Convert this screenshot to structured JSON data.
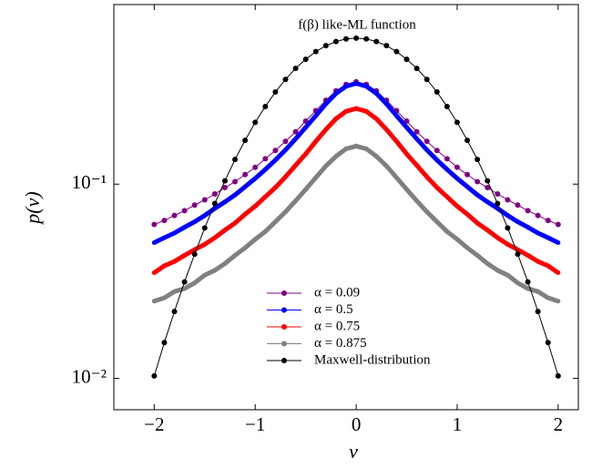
{
  "chart_data": {
    "type": "line",
    "title": "f(β) like-ML function",
    "xlabel": "v",
    "ylabel": "p(v)",
    "log_y": true,
    "legend": "bottom",
    "x": [
      -2.0,
      -1.9,
      -1.8,
      -1.7,
      -1.6,
      -1.5,
      -1.4,
      -1.3,
      -1.2,
      -1.1,
      -1.0,
      -0.9,
      -0.8,
      -0.7,
      -0.6,
      -0.5,
      -0.4,
      -0.3,
      -0.2,
      -0.1,
      0.0,
      0.1,
      0.2,
      0.3,
      0.4,
      0.5,
      0.6,
      0.7,
      0.8,
      0.9,
      1.0,
      1.1,
      1.2,
      1.3,
      1.4,
      1.5,
      1.6,
      1.7,
      1.8,
      1.9,
      2.0
    ],
    "series": [
      {
        "name": "α = 0.09",
        "color": "#800080",
        "values": [
          0.062,
          0.065,
          0.069,
          0.073,
          0.078,
          0.083,
          0.089,
          0.096,
          0.103,
          0.112,
          0.122,
          0.135,
          0.149,
          0.166,
          0.186,
          0.211,
          0.239,
          0.27,
          0.302,
          0.326,
          0.336,
          0.326,
          0.302,
          0.27,
          0.239,
          0.211,
          0.186,
          0.166,
          0.149,
          0.135,
          0.122,
          0.112,
          0.103,
          0.096,
          0.089,
          0.083,
          0.078,
          0.073,
          0.069,
          0.065,
          0.062
        ]
      },
      {
        "name": "α = 0.5",
        "color": "#0000ff",
        "values": [
          0.05,
          0.053,
          0.056,
          0.06,
          0.064,
          0.069,
          0.075,
          0.081,
          0.088,
          0.097,
          0.107,
          0.119,
          0.133,
          0.15,
          0.171,
          0.196,
          0.225,
          0.259,
          0.293,
          0.319,
          0.33,
          0.319,
          0.293,
          0.259,
          0.225,
          0.196,
          0.171,
          0.15,
          0.133,
          0.119,
          0.107,
          0.097,
          0.088,
          0.081,
          0.075,
          0.069,
          0.064,
          0.06,
          0.056,
          0.053,
          0.05
        ]
      },
      {
        "name": "α = 0.75",
        "color": "#ff0000",
        "values": [
          0.035,
          0.038,
          0.04,
          0.043,
          0.046,
          0.049,
          0.053,
          0.058,
          0.063,
          0.07,
          0.077,
          0.086,
          0.096,
          0.109,
          0.125,
          0.143,
          0.166,
          0.191,
          0.217,
          0.237,
          0.245,
          0.237,
          0.217,
          0.191,
          0.166,
          0.143,
          0.125,
          0.109,
          0.096,
          0.086,
          0.077,
          0.07,
          0.063,
          0.058,
          0.053,
          0.049,
          0.046,
          0.043,
          0.04,
          0.038,
          0.035
        ]
      },
      {
        "name": "α = 0.875",
        "color": "#808080",
        "values": [
          0.025,
          0.026,
          0.028,
          0.029,
          0.031,
          0.034,
          0.036,
          0.039,
          0.043,
          0.047,
          0.052,
          0.057,
          0.064,
          0.072,
          0.082,
          0.094,
          0.108,
          0.124,
          0.139,
          0.152,
          0.157,
          0.152,
          0.139,
          0.124,
          0.108,
          0.094,
          0.082,
          0.072,
          0.064,
          0.057,
          0.052,
          0.047,
          0.043,
          0.039,
          0.036,
          0.034,
          0.031,
          0.029,
          0.028,
          0.026,
          0.025
        ]
      },
      {
        "name": "Maxwell-distribution",
        "color": "#000000",
        "values": [
          0.0103,
          0.0153,
          0.0221,
          0.0314,
          0.0436,
          0.0595,
          0.0795,
          0.104,
          0.134,
          0.168,
          0.208,
          0.251,
          0.298,
          0.346,
          0.394,
          0.439,
          0.481,
          0.516,
          0.542,
          0.559,
          0.564,
          0.559,
          0.542,
          0.516,
          0.481,
          0.439,
          0.394,
          0.346,
          0.298,
          0.251,
          0.208,
          0.168,
          0.134,
          0.104,
          0.0795,
          0.0595,
          0.0436,
          0.0314,
          0.0221,
          0.0153,
          0.0103
        ]
      }
    ],
    "xlim": [
      -2.4,
      2.2
    ],
    "ylim": [
      0.0069,
      0.84
    ],
    "xticks": [
      {
        "value": -2,
        "label": "−2"
      },
      {
        "value": -1,
        "label": "−1"
      },
      0,
      1,
      2
    ],
    "yticks": [
      {
        "value": 0.01,
        "label": "10⁻²"
      },
      {
        "value": 0.1,
        "label": "10⁻¹"
      }
    ]
  }
}
